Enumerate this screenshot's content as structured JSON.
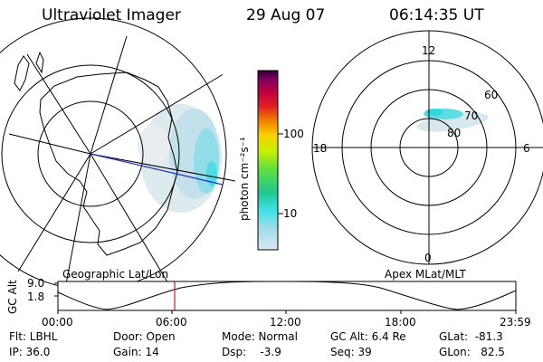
{
  "header": {
    "title": "Ultraviolet Imager",
    "date": "29 Aug 07",
    "time": "06:14:35 UT"
  },
  "geo_panel": {
    "label": "Geographic Lat/Lon"
  },
  "apex_panel": {
    "label": "Apex MLat/MLT",
    "mlt_labels": [
      "12",
      "18",
      "6",
      "0"
    ],
    "lat_labels": [
      "60",
      "70",
      "80"
    ]
  },
  "colorbar": {
    "unit_label": "photon cm⁻²s⁻¹",
    "ticks": [
      "100",
      "10"
    ],
    "scale": "log",
    "colors": [
      "#d8e8f0",
      "#40e0e8",
      "#20c890",
      "#60e040",
      "#c8f000",
      "#f8d000",
      "#f08000",
      "#e02020",
      "#c00040",
      "#800060",
      "#400040"
    ]
  },
  "orbit_plot": {
    "ylabel": "GC Alt",
    "y_ticks": [
      "9.0",
      "1.8"
    ],
    "x_ticks": [
      "00:00",
      "06:00",
      "12:00",
      "18:00",
      "23:59"
    ],
    "marker_time": "06:14:35",
    "marker_color": "#cc2020"
  },
  "info": {
    "filter": "Flt: LBHL",
    "ip": "IP: 36.0",
    "door": "Door: Open",
    "gain": "Gain: 14",
    "mode": "Mode: Normal",
    "dsp": "Dsp:    -3.9",
    "gc_alt": "GC Alt: 6.4 Re",
    "seq": "Seq: 39",
    "glat": "GLat:  -81.3",
    "glon": "GLon:   82.5"
  }
}
